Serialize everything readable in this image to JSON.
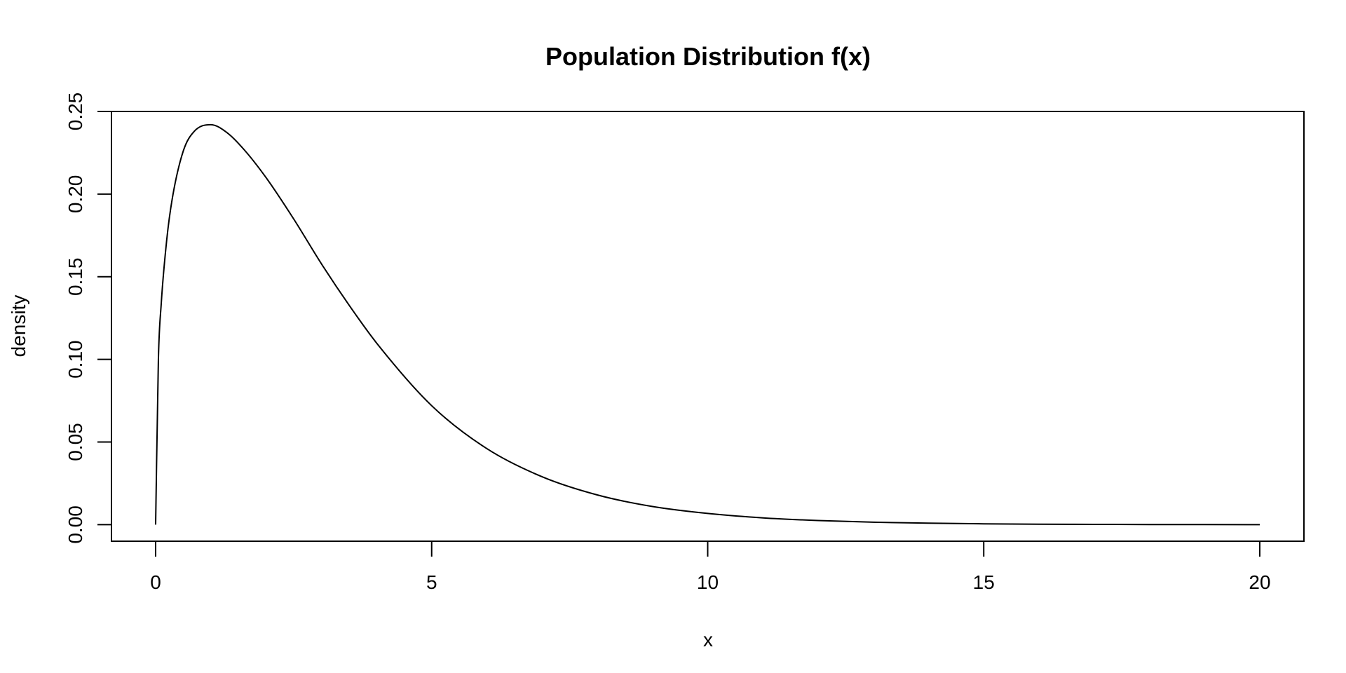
{
  "chart_data": {
    "type": "line",
    "title": "Population Distribution f(x)",
    "xlabel": "x",
    "ylabel": "density",
    "xlim": [
      -0.8,
      20.8
    ],
    "ylim": [
      -0.01,
      0.25
    ],
    "x_ticks": [
      0,
      5,
      10,
      15,
      20
    ],
    "x_tick_labels": [
      "0",
      "5",
      "10",
      "15",
      "20"
    ],
    "y_ticks": [
      0.0,
      0.05,
      0.1,
      0.15,
      0.2,
      0.25
    ],
    "y_tick_labels": [
      "0.00",
      "0.05",
      "0.10",
      "0.15",
      "0.20",
      "0.25"
    ],
    "grid": false,
    "series": [
      {
        "x": [
          0,
          0.05,
          0.1,
          0.2,
          0.3,
          0.5,
          0.7,
          1.0,
          1.3,
          1.6,
          2.0,
          2.5,
          3.0,
          3.5,
          4.0,
          5.0,
          6.0,
          7.0,
          8.0,
          9.0,
          10.0,
          11.0,
          12.0,
          13.0,
          14.0,
          15.0,
          16.0,
          17.0,
          18.0,
          19.0,
          20.0
        ],
        "y": [
          0.0,
          0.1,
          0.133,
          0.172,
          0.197,
          0.226,
          0.238,
          0.242,
          0.237,
          0.227,
          0.21,
          0.185,
          0.158,
          0.133,
          0.11,
          0.072,
          0.046,
          0.029,
          0.018,
          0.011,
          0.0068,
          0.0041,
          0.0025,
          0.0015,
          0.0009,
          0.0005,
          0.0003,
          0.0002,
          0.0001,
          5e-05,
          3e-05
        ],
        "color": "#000000"
      }
    ]
  }
}
